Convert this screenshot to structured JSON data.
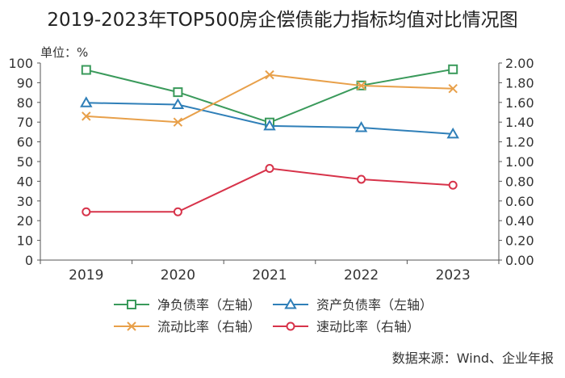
{
  "chart_data": {
    "type": "line",
    "title": "2019-2023年TOP500房企偿债能力指标均值对比情况图",
    "unit_label": "单位：%",
    "source": "数据来源：Wind、企业年报",
    "categories": [
      "2019",
      "2020",
      "2021",
      "2022",
      "2023"
    ],
    "y_left": {
      "min": 0,
      "max": 100,
      "ticks": [
        "0",
        "10",
        "20",
        "30",
        "40",
        "50",
        "60",
        "70",
        "80",
        "90",
        "100"
      ]
    },
    "y_right": {
      "min": 0,
      "max": 2,
      "ticks": [
        "0.00",
        "0.20",
        "0.40",
        "0.60",
        "0.80",
        "1.00",
        "1.20",
        "1.40",
        "1.60",
        "1.80",
        "2.00"
      ]
    },
    "series": [
      {
        "name": "净负债率（左轴）",
        "axis": "left",
        "marker": "square",
        "color": "#3a9a5b",
        "values": [
          96.5,
          85.2,
          69.8,
          88.6,
          96.8
        ]
      },
      {
        "name": "资产负债率（左轴）",
        "axis": "left",
        "marker": "triangle",
        "color": "#2f7fb8",
        "values": [
          79.8,
          78.9,
          68.1,
          67.2,
          64.0
        ]
      },
      {
        "name": "流动比率（右轴）",
        "axis": "right",
        "marker": "x",
        "color": "#e8a04a",
        "values": [
          1.46,
          1.4,
          1.88,
          1.77,
          1.74
        ]
      },
      {
        "name": "速动比率（右轴）",
        "axis": "right",
        "marker": "circle",
        "color": "#d7334a",
        "values": [
          0.49,
          0.49,
          0.93,
          0.82,
          0.76
        ]
      }
    ],
    "legend": {
      "placement": "bottom"
    },
    "grid": false
  }
}
